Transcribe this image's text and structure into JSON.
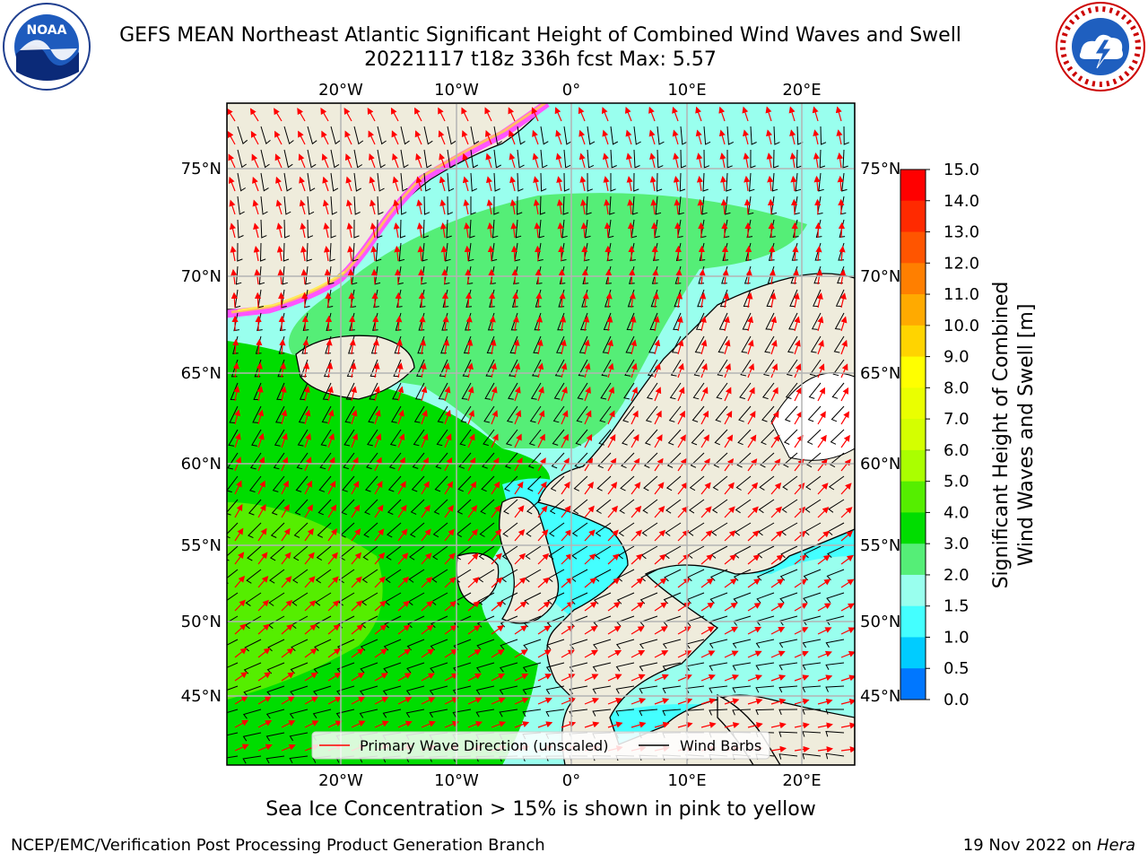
{
  "title": {
    "line1": "GEFS MEAN Northeast Atlantic Significant Height of Combined Wind Waves and Swell",
    "line2": "20221117 t18z 336h fcst   Max: 5.57"
  },
  "map": {
    "lon_labels": [
      "20°W",
      "10°W",
      "0°",
      "10°E",
      "20°E"
    ],
    "lat_labels": [
      "75°N",
      "70°N",
      "65°N",
      "60°N",
      "55°N",
      "50°N",
      "45°N"
    ],
    "extent": {
      "lon": [
        -29,
        25
      ],
      "lat": [
        41,
        78
      ]
    },
    "colors": {
      "land": "#efecdc",
      "ice": "#ffffff",
      "grid": "#b4b4b4",
      "arrows": "#ff0000",
      "barbs": "#000000"
    }
  },
  "legend": {
    "arrow_label": "Primary Wave Direction (unscaled)",
    "barb_label": "Wind Barbs"
  },
  "colorbar": {
    "label_line1": "Significant Height of Combined",
    "label_line2": "Wind Waves and Swell [m]",
    "ticks": [
      "15.0",
      "14.0",
      "13.0",
      "12.0",
      "11.0",
      "10.0",
      "9.0",
      "8.0",
      "7.0",
      "6.0",
      "5.0",
      "4.0",
      "3.0",
      "2.0",
      "1.5",
      "1.0",
      "0.5",
      "0.0"
    ],
    "colors": [
      "#ff0000",
      "#ff2a00",
      "#ff5500",
      "#ff7f00",
      "#ffaa00",
      "#ffd400",
      "#ffff00",
      "#eaff00",
      "#d4ff00",
      "#aaff00",
      "#55ee00",
      "#00dd00",
      "#55ee77",
      "#99ffee",
      "#44ffff",
      "#00ccff",
      "#0077ff",
      "#0000ff"
    ]
  },
  "caption": "Sea Ice Concentration > 15% is shown in pink to yellow",
  "footer": {
    "left": "NCEP/EMC/Verification Post Processing Product Generation Branch",
    "date": "19 Nov 2022 on",
    "host": "Hera"
  }
}
